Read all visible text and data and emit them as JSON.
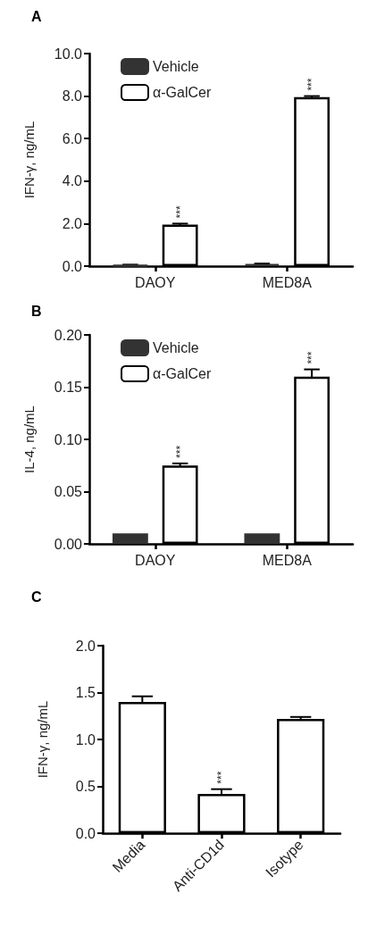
{
  "chart_data": [
    {
      "type": "bar",
      "title": "A",
      "ylabel": "IFN-γ, ng/mL",
      "categories": [
        "DAOY",
        "MED8A"
      ],
      "series": [
        {
          "name": "Vehicle",
          "color": "#333333",
          "values": [
            0.05,
            0.1
          ],
          "errors": [
            0.02,
            0.02
          ]
        },
        {
          "name": "α-GalCer",
          "color": "#ffffff",
          "values": [
            1.95,
            7.95
          ],
          "errors": [
            0.05,
            0.05
          ],
          "value_labels": [
            "***",
            "***"
          ]
        }
      ],
      "ylim": [
        0,
        10
      ],
      "yticks": [
        {
          "value": 0,
          "label": "0.0"
        },
        {
          "value": 2,
          "label": "2.0"
        },
        {
          "value": 4,
          "label": "4.0"
        },
        {
          "value": 6,
          "label": "6.0"
        },
        {
          "value": 8,
          "label": "8.0"
        },
        {
          "value": 10,
          "label": "10.0"
        }
      ],
      "legend": "top left",
      "grid": false
    },
    {
      "type": "bar",
      "title": "B",
      "ylabel": "IL-4, ng/mL",
      "categories": [
        "DAOY",
        "MED8A"
      ],
      "series": [
        {
          "name": "Vehicle",
          "color": "#333333",
          "values": [
            0.01,
            0.01
          ]
        },
        {
          "name": "α-GalCer",
          "color": "#ffffff",
          "values": [
            0.075,
            0.16
          ],
          "errors": [
            0.002,
            0.007
          ],
          "value_labels": [
            "***",
            "***"
          ]
        }
      ],
      "ylim": [
        0,
        0.2
      ],
      "yticks": [
        {
          "value": 0,
          "label": "0.00"
        },
        {
          "value": 0.05,
          "label": "0.05"
        },
        {
          "value": 0.1,
          "label": "0.10"
        },
        {
          "value": 0.15,
          "label": "0.15"
        },
        {
          "value": 0.2,
          "label": "0.20"
        }
      ],
      "legend": "top left",
      "grid": false
    },
    {
      "type": "bar",
      "title": "C",
      "ylabel": "IFN-γ, ng/mL",
      "categories": [
        "Media",
        "Anti-CD1d",
        "Isotype"
      ],
      "series": [
        {
          "color": "#ffffff",
          "values": [
            1.4,
            0.42,
            1.22
          ],
          "errors": [
            0.06,
            0.05,
            0.02
          ],
          "value_labels": [
            null,
            "***",
            null
          ]
        }
      ],
      "ylim": [
        0,
        2
      ],
      "yticks": [
        {
          "value": 0,
          "label": "0.0"
        },
        {
          "value": 0.5,
          "label": "0.5"
        },
        {
          "value": 1,
          "label": "1.0"
        },
        {
          "value": 1.5,
          "label": "1.5"
        },
        {
          "value": 2,
          "label": "2.0"
        }
      ],
      "grid": false
    }
  ]
}
